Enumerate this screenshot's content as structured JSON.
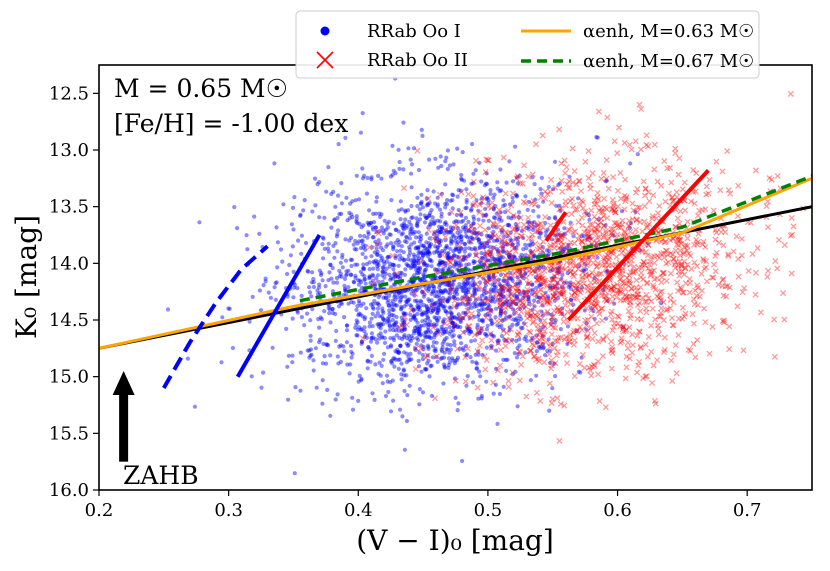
{
  "chart_data": {
    "type": "scatter",
    "xlabel": "(V − I)₀ [mag]",
    "ylabel": "K₀ [mag]",
    "xlim": [
      0.2,
      0.75
    ],
    "ylim": [
      16.0,
      12.25
    ],
    "y_inverted": true,
    "x_ticks": [
      "0.2",
      "0.3",
      "0.4",
      "0.5",
      "0.6",
      "0.7"
    ],
    "y_ticks": [
      "12.5",
      "13.0",
      "13.5",
      "14.0",
      "14.5",
      "15.0",
      "15.5",
      "16.0"
    ],
    "annotation_mass": "M = 0.65 M☉",
    "annotation_feh": "[Fe/H] = -1.00 dex",
    "zahb_label": "ZAHB",
    "legend": {
      "oo1": "RRab Oo I",
      "oo2": "RRab Oo II",
      "enh063": "αenh, M=0.63 M☉",
      "enh067": "αenh, M=0.67 M☉"
    },
    "colors": {
      "oo1": "#0000ff",
      "oo2": "#ff0000",
      "enh063": "#ffa500",
      "enh067": "#008000",
      "fit": "#000000"
    },
    "series": [
      {
        "name": "RRab Oo I",
        "kind": "scatter-cloud",
        "center": [
          0.46,
          14.15
        ],
        "spread": [
          0.055,
          0.45
        ],
        "count": 2400
      },
      {
        "name": "RRab Oo II",
        "kind": "scatter-cloud",
        "center": [
          0.58,
          14.05
        ],
        "spread": [
          0.06,
          0.45
        ],
        "count": 1500
      },
      {
        "name": "αenh, M=0.63 M☉",
        "kind": "line",
        "x": [
          0.2,
          0.35,
          0.45,
          0.55,
          0.65,
          0.75
        ],
        "y": [
          14.75,
          14.38,
          14.18,
          13.98,
          13.73,
          13.25
        ]
      },
      {
        "name": "αenh, M=0.67 M☉",
        "kind": "line",
        "x": [
          0.355,
          0.45,
          0.55,
          0.65,
          0.75
        ],
        "y": [
          14.33,
          14.12,
          13.92,
          13.68,
          13.23
        ]
      },
      {
        "name": "fit",
        "kind": "line",
        "x": [
          0.2,
          0.75
        ],
        "y": [
          14.75,
          13.5
        ]
      },
      {
        "name": "Oo I edge (dashed)",
        "kind": "line",
        "x": [
          0.25,
          0.27,
          0.29,
          0.31,
          0.33
        ],
        "y": [
          15.1,
          14.7,
          14.35,
          14.05,
          13.85
        ]
      },
      {
        "name": "Oo I edge (solid)",
        "kind": "line",
        "x": [
          0.307,
          0.37
        ],
        "y": [
          15.0,
          13.75
        ]
      },
      {
        "name": "Oo II edge (dashed)",
        "kind": "line",
        "x": [
          0.545,
          0.56
        ],
        "y": [
          13.8,
          13.55
        ]
      },
      {
        "name": "Oo II edge (solid)",
        "kind": "line",
        "x": [
          0.562,
          0.67
        ],
        "y": [
          14.5,
          13.18
        ]
      }
    ],
    "zahb_arrow": {
      "x": 0.219,
      "y_from": 15.75,
      "y_to": 14.95
    }
  }
}
